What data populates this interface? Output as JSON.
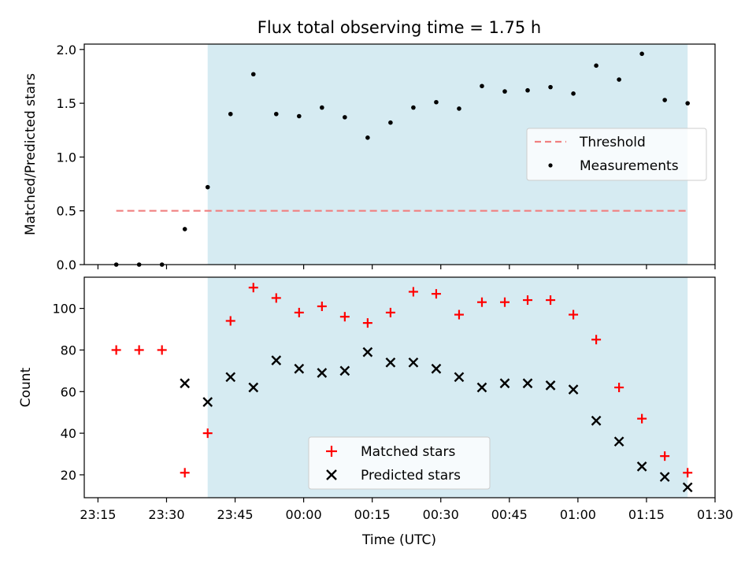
{
  "chart_data": {
    "type": "scatter",
    "title": "Flux total observing time = 1.75 h",
    "x_unit": "minutes after 23:00 UTC",
    "xlabel": "Time (UTC)",
    "xlim": [
      12,
      150
    ],
    "x_ticks": [
      15,
      30,
      45,
      60,
      75,
      90,
      105,
      120,
      135,
      150
    ],
    "x_tick_labels": [
      "23:15",
      "23:30",
      "23:45",
      "00:00",
      "00:15",
      "00:30",
      "00:45",
      "01:00",
      "01:15",
      "01:30"
    ],
    "shaded_region": [
      39,
      144
    ],
    "shade_color": "#add8e6",
    "x": [
      19,
      24,
      29,
      34,
      39,
      44,
      49,
      54,
      59,
      64,
      69,
      74,
      79,
      84,
      89,
      94,
      99,
      104,
      109,
      114,
      119,
      124,
      129,
      134,
      139,
      144
    ],
    "panels": [
      {
        "ylabel": "Matched/Predicted stars",
        "ylim": [
          0,
          2.05
        ],
        "y_ticks": [
          0.0,
          0.5,
          1.0,
          1.5,
          2.0
        ],
        "y_tick_labels": [
          "0.0",
          "0.5",
          "1.0",
          "1.5",
          "2.0"
        ],
        "threshold": {
          "name": "Threshold",
          "value": 0.5,
          "x_range": [
            19,
            144
          ],
          "color": "#f08080"
        },
        "series": [
          {
            "name": "Measurements",
            "marker": "dot",
            "color": "#000000",
            "values": [
              0,
              0,
              0,
              0.33,
              0.72,
              1.4,
              1.77,
              1.4,
              1.38,
              1.46,
              1.37,
              1.18,
              1.32,
              1.46,
              1.51,
              1.45,
              1.66,
              1.61,
              1.62,
              1.65,
              1.59,
              1.85,
              1.72,
              1.96,
              1.53,
              1.5
            ]
          }
        ],
        "legend": [
          {
            "label": "Threshold",
            "symbol": "dash",
            "color": "#f08080"
          },
          {
            "label": "Measurements",
            "symbol": "dot",
            "color": "#000000"
          }
        ],
        "legend_position": "center-right"
      },
      {
        "ylabel": "Count",
        "ylim": [
          9,
          115
        ],
        "y_ticks": [
          20,
          40,
          60,
          80,
          100
        ],
        "y_tick_labels": [
          "20",
          "40",
          "60",
          "80",
          "100"
        ],
        "series": [
          {
            "name": "Matched stars",
            "marker": "plus",
            "color": "#ff0000",
            "values": [
              80,
              80,
              80,
              21,
              40,
              94,
              110,
              105,
              98,
              101,
              96,
              93,
              98,
              108,
              107,
              97,
              103,
              103,
              104,
              104,
              97,
              85,
              62,
              47,
              29,
              21
            ]
          },
          {
            "name": "Predicted stars",
            "marker": "x",
            "color": "#000000",
            "values": [
              null,
              null,
              null,
              64,
              55,
              67,
              62,
              75,
              71,
              69,
              70,
              79,
              74,
              74,
              71,
              67,
              62,
              64,
              64,
              63,
              61,
              46,
              36,
              24,
              19,
              14
            ]
          }
        ],
        "legend": [
          {
            "label": "Matched stars",
            "symbol": "plus",
            "color": "#ff0000"
          },
          {
            "label": "Predicted stars",
            "symbol": "x",
            "color": "#000000"
          }
        ],
        "legend_position": "bottom-center"
      }
    ]
  }
}
